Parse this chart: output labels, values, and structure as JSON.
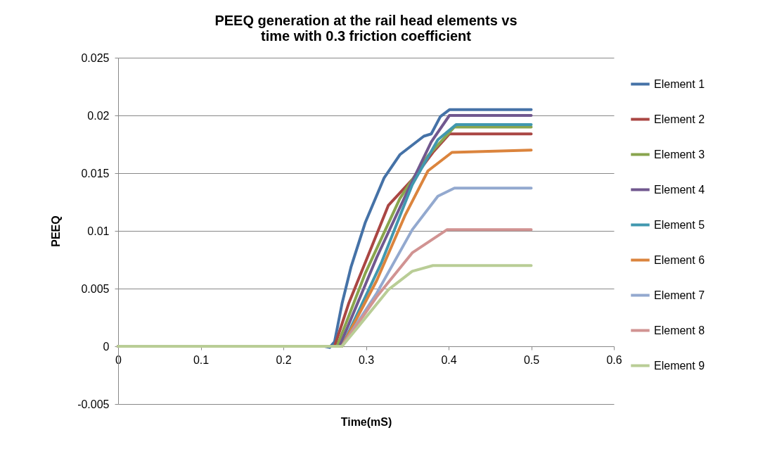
{
  "chart_data": {
    "type": "line",
    "title": "PEEQ generation at the rail head elements vs time with 0.3 friction coefficient",
    "xlabel": "Time(mS)",
    "ylabel": "PEEQ",
    "xlim": [
      0,
      0.6
    ],
    "xticks": [
      0,
      0.1,
      0.2,
      0.3,
      0.4,
      0.5,
      0.6
    ],
    "ylim": [
      -0.005,
      0.025
    ],
    "yticks": [
      -0.005,
      0,
      0.005,
      0.01,
      0.015,
      0.02,
      0.025
    ],
    "grid": "y",
    "legend": "right",
    "marker": "none",
    "line_style": "solid",
    "series": [
      {
        "name": "Element 1",
        "color": "#4572a7",
        "x": [
          0,
          0.25,
          0.256,
          0.262,
          0.271,
          0.282,
          0.299,
          0.322,
          0.341,
          0.37,
          0.379,
          0.39,
          0.401,
          0.5
        ],
        "values": [
          0,
          0,
          -0.0001,
          0.0004,
          0.0037,
          0.0069,
          0.0107,
          0.0146,
          0.0166,
          0.0182,
          0.0184,
          0.0199,
          0.0205,
          0.0205
        ]
      },
      {
        "name": "Element 2",
        "color": "#aa4643",
        "x": [
          0,
          0.262,
          0.279,
          0.305,
          0.327,
          0.358,
          0.381,
          0.401,
          0.5
        ],
        "values": [
          0,
          0,
          0.0037,
          0.0083,
          0.0122,
          0.0146,
          0.0168,
          0.0184,
          0.0184
        ]
      },
      {
        "name": "Element 3",
        "color": "#89a54e",
        "x": [
          0,
          0.265,
          0.299,
          0.341,
          0.375,
          0.407,
          0.5
        ],
        "values": [
          0,
          0,
          0.0063,
          0.0128,
          0.0165,
          0.019,
          0.019
        ]
      },
      {
        "name": "Element 4",
        "color": "#71588f",
        "x": [
          0,
          0.268,
          0.313,
          0.35,
          0.379,
          0.401,
          0.5
        ],
        "values": [
          0,
          0,
          0.0077,
          0.0134,
          0.0177,
          0.02,
          0.02
        ]
      },
      {
        "name": "Element 5",
        "color": "#4198af",
        "x": [
          0,
          0.271,
          0.319,
          0.356,
          0.387,
          0.409,
          0.5
        ],
        "values": [
          0,
          0,
          0.0073,
          0.014,
          0.0179,
          0.0192,
          0.0192
        ]
      },
      {
        "name": "Element 6",
        "color": "#db843d",
        "x": [
          0,
          0.271,
          0.313,
          0.347,
          0.375,
          0.404,
          0.5
        ],
        "values": [
          0,
          0,
          0.0057,
          0.0113,
          0.0152,
          0.0168,
          0.017
        ]
      },
      {
        "name": "Element 7",
        "color": "#93a9cf",
        "x": [
          0,
          0.271,
          0.313,
          0.356,
          0.387,
          0.407,
          0.5
        ],
        "values": [
          0,
          0,
          0.0046,
          0.0101,
          0.013,
          0.0137,
          0.0137
        ]
      },
      {
        "name": "Element 8",
        "color": "#d19392",
        "x": [
          0,
          0.271,
          0.313,
          0.356,
          0.398,
          0.5
        ],
        "values": [
          0,
          0,
          0.0043,
          0.0081,
          0.0101,
          0.0101
        ]
      },
      {
        "name": "Element 9",
        "color": "#b9cd96",
        "x": [
          0,
          0.271,
          0.285,
          0.327,
          0.356,
          0.381,
          0.5
        ],
        "values": [
          0,
          0,
          0.0012,
          0.0049,
          0.0065,
          0.007,
          0.007
        ]
      }
    ]
  }
}
